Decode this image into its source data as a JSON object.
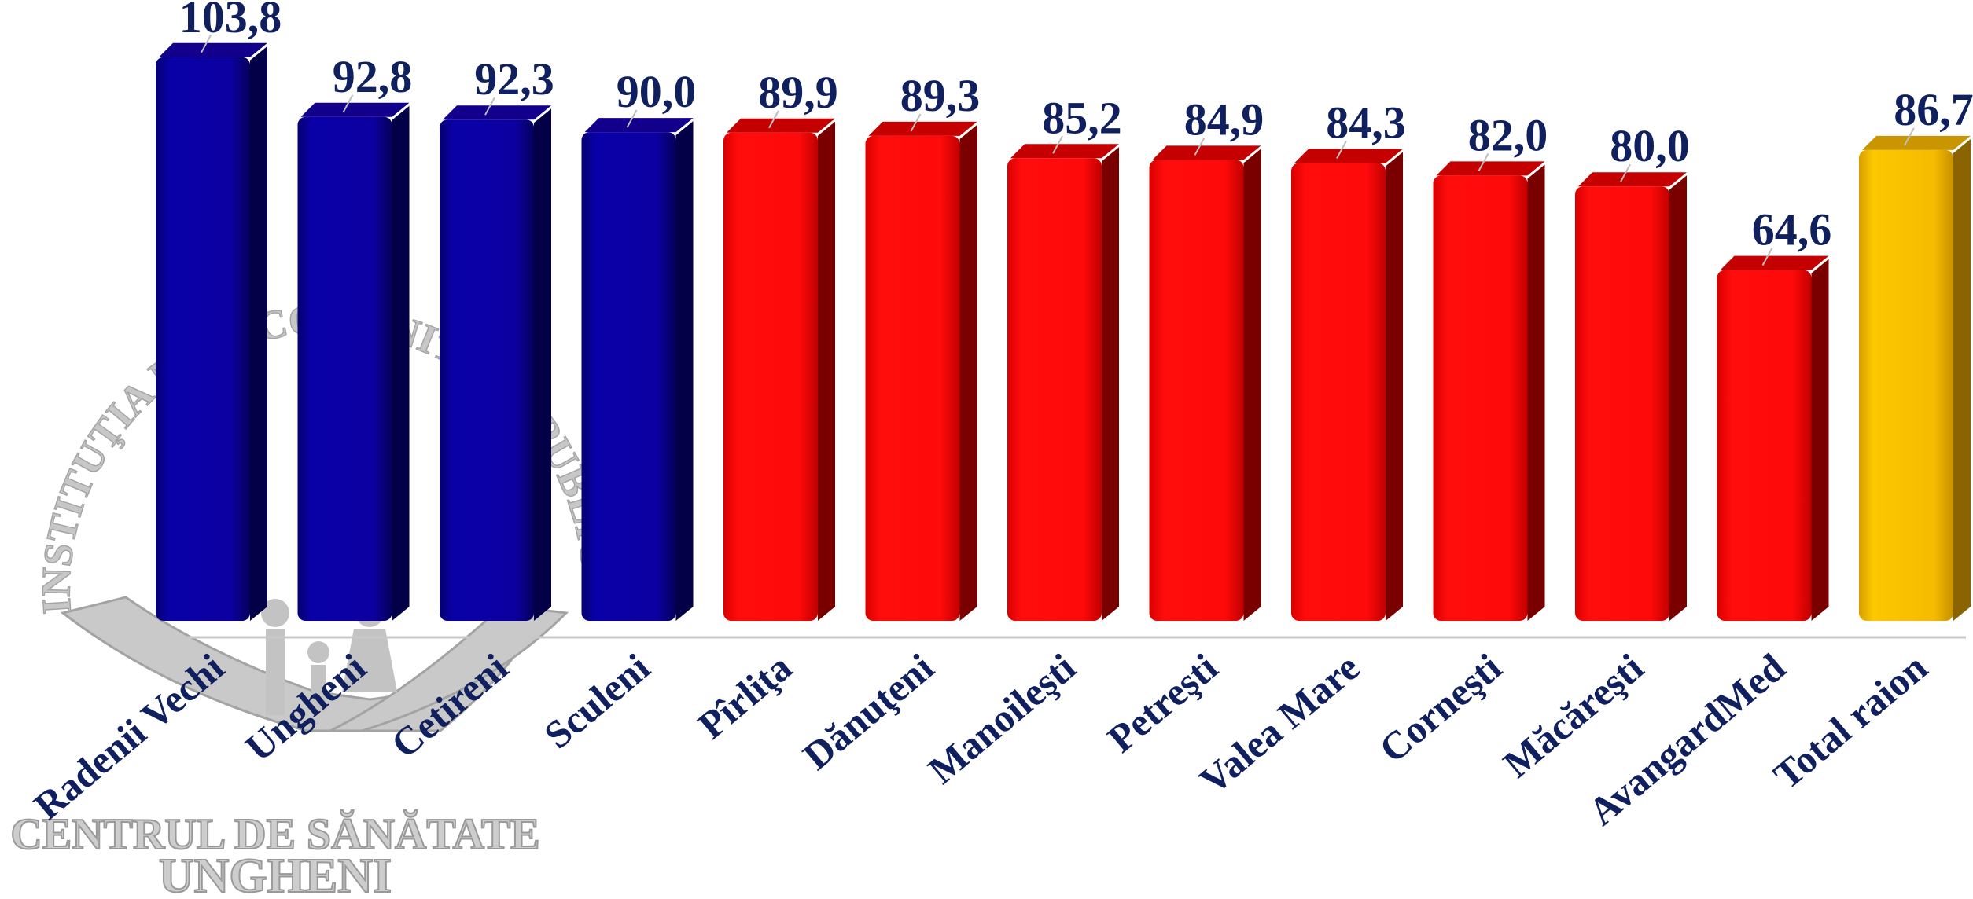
{
  "chart_data": {
    "type": "bar",
    "categories": [
      "Radenii Vechi",
      "Ungheni",
      "Cetireni",
      "Sculeni",
      "Pîrliţa",
      "Dănuţeni",
      "Manoileşti",
      "Petreşti",
      "Valea Mare",
      "Corneşti",
      "Măcăreşti",
      "AvangardMed",
      "Total raion"
    ],
    "values": [
      103.8,
      92.8,
      92.3,
      90.0,
      89.9,
      89.3,
      85.2,
      84.9,
      84.3,
      82.0,
      80.0,
      64.6,
      86.7
    ],
    "data_labels": [
      "103,8",
      "92,8",
      "92,3",
      "90,0",
      "89,9",
      "89,3",
      "85,2",
      "84,9",
      "84,3",
      "82,0",
      "80,0",
      "64,6",
      "86,7"
    ],
    "bar_groups": [
      "blue",
      "blue",
      "blue",
      "blue",
      "red",
      "red",
      "red",
      "red",
      "red",
      "red",
      "red",
      "red",
      "gold"
    ],
    "title": "",
    "xlabel": "",
    "ylabel": "",
    "ylim": [
      0,
      108
    ],
    "grid": false,
    "legend": "none"
  },
  "watermark": {
    "arc_text": "INSTITUŢIA MEDICO-SANITARĂ PUBLICĂ",
    "line1": "CENTRUL DE SĂNĂTATE",
    "line2": "UNGHENI"
  },
  "colors": {
    "blue": "#0a00a0",
    "red": "#ff0a0a",
    "gold": "#f5bb00",
    "label_text": "#10205e",
    "axis": "#c8c8c8",
    "watermark": "#b9b9b9"
  }
}
